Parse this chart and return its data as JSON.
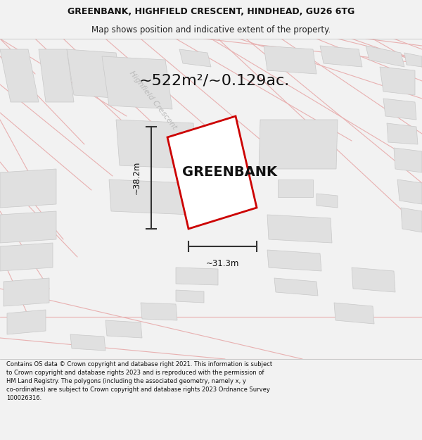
{
  "title_line1": "GREENBANK, HIGHFIELD CRESCENT, HINDHEAD, GU26 6TG",
  "title_line2": "Map shows position and indicative extent of the property.",
  "area_text": "~522m²/~0.129ac.",
  "property_name": "GREENBANK",
  "dim_height": "~38.2m",
  "dim_width": "~31.3m",
  "street_label": "Highfield Crescent",
  "footer_text": "Contains OS data © Crown copyright and database right 2021. This information is subject to Crown copyright and database rights 2023 and is reproduced with the permission of HM Land Registry. The polygons (including the associated geometry, namely x, y co-ordinates) are subject to Crown copyright and database rights 2023 Ordnance Survey 100026316.",
  "bg_color": "#f2f2f2",
  "map_bg": "#f0f0f0",
  "road_color": "#e8b8b8",
  "road_line_color": "#e8b0b0",
  "building_color": "#e0e0e0",
  "building_edge_color": "#c8c8c8",
  "plot_color": "#ffffff",
  "plot_edge_color": "#cc0000",
  "dim_line_color": "#333333",
  "title_bg": "#ffffff",
  "footer_bg": "#ffffff",
  "title_fontsize": 9.0,
  "subtitle_fontsize": 8.5,
  "area_fontsize": 16,
  "property_fontsize": 14,
  "street_fontsize": 8,
  "dim_fontsize": 8.5,
  "footer_fontsize": 6.0
}
